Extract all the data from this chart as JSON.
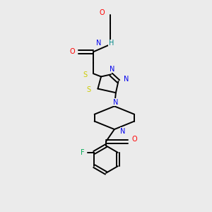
{
  "bg_color": "#ebebeb",
  "fig_size": [
    3.0,
    3.0
  ],
  "dpi": 100,
  "colors": {
    "O": "#ff0000",
    "N": "#0000ee",
    "S": "#cccc00",
    "F": "#00aa55",
    "H": "#008888",
    "C": "#000000"
  }
}
